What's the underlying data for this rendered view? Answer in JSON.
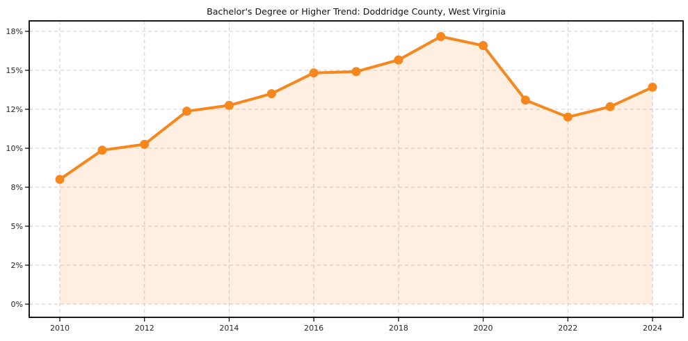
{
  "chart_data": {
    "type": "line",
    "title": "Bachelor's Degree or Higher Trend: Doddridge County, West Virginia",
    "xlabel": "",
    "ylabel": "",
    "x": [
      2010,
      2011,
      2012,
      2013,
      2014,
      2015,
      2016,
      2017,
      2018,
      2019,
      2020,
      2021,
      2022,
      2023,
      2024
    ],
    "values": [
      8.4,
      9.9,
      10.2,
      11.9,
      12.3,
      13.2,
      14.8,
      14.9,
      15.8,
      17.6,
      16.9,
      12.7,
      11.6,
      12.2,
      13.7
    ],
    "unit": "%",
    "x_ticks": {
      "values": [
        2010,
        2012,
        2014,
        2016,
        2018,
        2020,
        2022,
        2024
      ],
      "labels": [
        "2010",
        "2012",
        "2014",
        "2016",
        "2018",
        "2020",
        "2022",
        "2024"
      ]
    },
    "y_ticks": {
      "values": [
        0,
        2,
        5,
        8,
        10,
        12,
        15,
        18
      ],
      "labels": [
        "0%",
        "2%",
        "5%",
        "8%",
        "10%",
        "12%",
        "15%",
        "18%"
      ],
      "pixel_spacing": "uniform"
    },
    "axis_range_note": "y ticks evenly spaced in pixels despite non-uniform values; data interpolated piecewise between ticks",
    "grid": {
      "horizontal": true,
      "vertical": true,
      "style": "dashed"
    },
    "legend": "none",
    "marker": "circle",
    "area_fill": true,
    "colors": {
      "line": "#F6871D",
      "marker": "#F6871D",
      "fill": "rgba(246,135,29,0.13)",
      "grid": "#CDCDCD",
      "spine": "#000000",
      "tick_label": "#262626",
      "title": "#111111",
      "background": "#FFFFFF"
    }
  }
}
